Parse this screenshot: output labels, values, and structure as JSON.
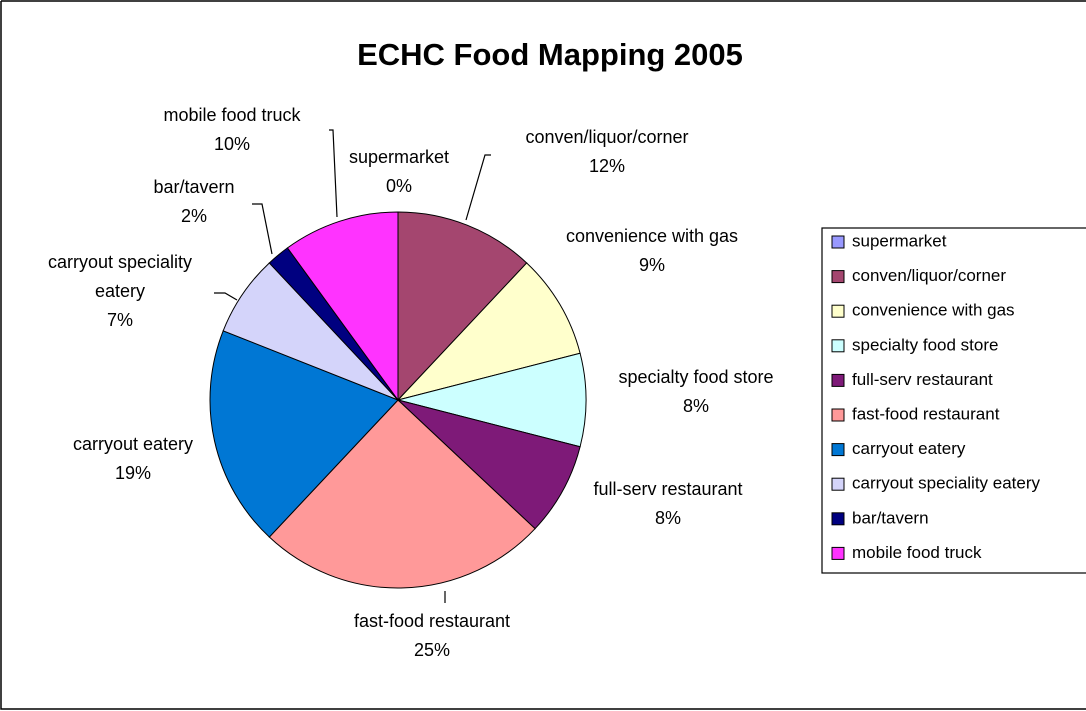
{
  "chart_data": {
    "type": "pie",
    "title": "ECHC Food Mapping 2005",
    "categories": [
      "supermarket",
      "conven/liquor/corner",
      "convenience with gas",
      "specialty food store",
      "full-serv restaurant",
      "fast-food restaurant",
      "carryout eatery",
      "carryout speciality eatery",
      "bar/tavern",
      "mobile food truck"
    ],
    "values": [
      0,
      12,
      9,
      8,
      8,
      25,
      19,
      7,
      2,
      10
    ],
    "value_labels": [
      "0%",
      "12%",
      "9%",
      "8%",
      "8%",
      "25%",
      "19%",
      "7%",
      "2%",
      "10%"
    ],
    "colors": [
      "#9999ff",
      "#a4466f",
      "#ffffcc",
      "#ccffff",
      "#7e1a78",
      "#ff9999",
      "#0077d4",
      "#d4d4fa",
      "#000080",
      "#ff33ff"
    ],
    "legend": "right"
  }
}
